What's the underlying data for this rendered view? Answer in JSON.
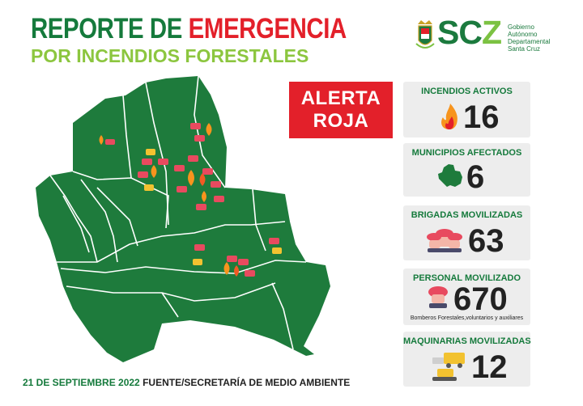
{
  "title": {
    "line1_a": "REPORTE DE ",
    "line1_b": "EMERGENCIA",
    "line2": "POR INCENDIOS FORESTALES"
  },
  "logo": {
    "mark_a": "SC",
    "mark_b": "Z",
    "line1": "Gobierno",
    "line2": "Autónomo",
    "line3": "Departamental",
    "line4": "Santa Cruz"
  },
  "alert": {
    "line1": "ALERTA",
    "line2": "ROJA"
  },
  "stats": {
    "incendios": {
      "label": "INCENDIOS ACTIVOS",
      "value": "16"
    },
    "municipios": {
      "label": "MUNICIPIOS AFECTADOS",
      "value": "6"
    },
    "brigadas": {
      "label": "BRIGADAS MOVILIZADAS",
      "value": "63"
    },
    "personal": {
      "label": "PERSONAL MOVILIZADO",
      "value": "670",
      "note": "Bomberos Forestales,voluntarios y auxiliares"
    },
    "maquinarias": {
      "label": "MAQUINARIAS MOVILIZADAS",
      "value": "12"
    }
  },
  "footer": {
    "date": "21 DE SEPTIEMBRE 2022",
    "source": "FUENTE/SECRETARÍA DE MEDIO AMBIENTE"
  },
  "colors": {
    "green": "#157a3c",
    "lightgreen": "#8cc63f",
    "red": "#e3202a",
    "map": "#1e7b3c"
  }
}
